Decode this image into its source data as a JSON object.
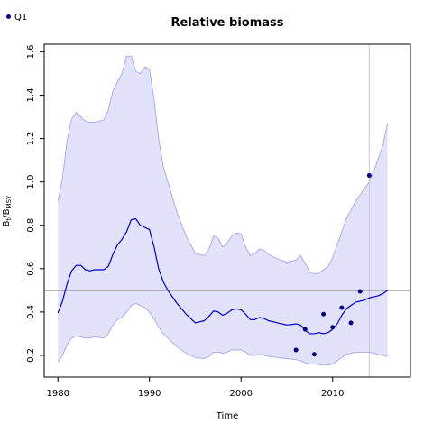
{
  "chart_data": {
    "type": "line",
    "title": "Relative biomass",
    "xlabel": "Time",
    "ylabel_main": "B",
    "ylabel_sub1": "t",
    "ylabel_sep": "/B",
    "ylabel_sub2": "MSY",
    "xlim": [
      1978.5,
      2018.5
    ],
    "ylim": [
      0.1,
      1.635
    ],
    "x_ticks": [
      1980,
      1990,
      2000,
      2010
    ],
    "y_ticks": [
      0.2,
      0.4,
      0.6,
      0.8,
      1.0,
      1.2,
      1.4,
      1.6
    ],
    "x_tick_labels": [
      "1980",
      "1990",
      "2000",
      "2010"
    ],
    "y_tick_labels": [
      "0.2",
      "0.4",
      "0.6",
      "0.8",
      "1.0",
      "1.2",
      "1.4",
      "1.6"
    ],
    "grid": false,
    "reference_line": 0.5,
    "reference_year": 2014,
    "colors": {
      "median": "#0000dd",
      "band_fill": "#e2e2fb",
      "band_edge": "#9c9cf2",
      "points": "#00008b",
      "reference": "#7a7a7a",
      "vline": "#c8c8d8"
    },
    "median": {
      "x": [
        1980,
        1980.5,
        1981,
        1981.5,
        1982,
        1982.5,
        1983,
        1983.5,
        1984,
        1985,
        1985.5,
        1986,
        1986.5,
        1987,
        1987.5,
        1988,
        1988.5,
        1989,
        1989.5,
        1990,
        1990.5,
        1991,
        1991.5,
        1992,
        1993,
        1994,
        1995,
        1996,
        1996.5,
        1997,
        1997.5,
        1998,
        1998.5,
        1999,
        1999.5,
        2000,
        2000.5,
        2001,
        2001.5,
        2002,
        2002.5,
        2003,
        2004,
        2005,
        2006,
        2006.5,
        2007,
        2007.5,
        2008,
        2008.5,
        2009,
        2009.5,
        2010,
        2010.5,
        2011,
        2011.5,
        2012,
        2012.5,
        2013,
        2013.5,
        2014,
        2014.5,
        2015,
        2015.5,
        2016
      ],
      "y": [
        0.395,
        0.45,
        0.53,
        0.59,
        0.615,
        0.615,
        0.595,
        0.59,
        0.595,
        0.595,
        0.61,
        0.665,
        0.71,
        0.735,
        0.77,
        0.825,
        0.83,
        0.8,
        0.79,
        0.78,
        0.7,
        0.6,
        0.54,
        0.5,
        0.44,
        0.39,
        0.35,
        0.36,
        0.38,
        0.405,
        0.4,
        0.385,
        0.395,
        0.41,
        0.415,
        0.41,
        0.39,
        0.365,
        0.365,
        0.375,
        0.37,
        0.36,
        0.35,
        0.34,
        0.345,
        0.34,
        0.315,
        0.3,
        0.3,
        0.305,
        0.3,
        0.305,
        0.32,
        0.345,
        0.385,
        0.415,
        0.43,
        0.445,
        0.45,
        0.455,
        0.465,
        0.47,
        0.475,
        0.485,
        0.5
      ]
    },
    "upper": {
      "x": [
        1980,
        1980.5,
        1981,
        1981.5,
        1982,
        1982.5,
        1983,
        1983.5,
        1984,
        1985,
        1985.5,
        1986,
        1986.5,
        1987,
        1987.5,
        1988,
        1988.5,
        1989,
        1989.5,
        1990,
        1990.5,
        1991,
        1991.5,
        1992,
        1993,
        1994,
        1995,
        1996,
        1996.5,
        1997,
        1997.5,
        1998,
        1998.5,
        1999,
        1999.5,
        2000,
        2000.5,
        2001,
        2001.5,
        2002,
        2002.5,
        2003,
        2004,
        2005,
        2006,
        2006.5,
        2007,
        2007.5,
        2008,
        2008.5,
        2009,
        2009.5,
        2010,
        2010.5,
        2011,
        2011.5,
        2012,
        2012.5,
        2013,
        2013.5,
        2014,
        2014.5,
        2015,
        2015.5,
        2016
      ],
      "y": [
        0.91,
        1.02,
        1.19,
        1.29,
        1.32,
        1.3,
        1.28,
        1.275,
        1.275,
        1.285,
        1.33,
        1.42,
        1.46,
        1.5,
        1.58,
        1.58,
        1.51,
        1.5,
        1.53,
        1.52,
        1.38,
        1.2,
        1.07,
        1.0,
        0.86,
        0.75,
        0.67,
        0.66,
        0.69,
        0.75,
        0.74,
        0.7,
        0.72,
        0.75,
        0.765,
        0.76,
        0.7,
        0.66,
        0.67,
        0.69,
        0.685,
        0.665,
        0.645,
        0.63,
        0.64,
        0.66,
        0.625,
        0.585,
        0.575,
        0.58,
        0.595,
        0.61,
        0.65,
        0.71,
        0.77,
        0.83,
        0.87,
        0.91,
        0.94,
        0.97,
        1.0,
        1.05,
        1.11,
        1.17,
        1.27
      ]
    },
    "lower": {
      "x": [
        1980,
        1980.5,
        1981,
        1981.5,
        1982,
        1982.5,
        1983,
        1983.5,
        1984,
        1985,
        1985.5,
        1986,
        1986.5,
        1987,
        1987.5,
        1988,
        1988.5,
        1989,
        1989.5,
        1990,
        1990.5,
        1991,
        1991.5,
        1992,
        1993,
        1994,
        1995,
        1996,
        1996.5,
        1997,
        1997.5,
        1998,
        1998.5,
        1999,
        1999.5,
        2000,
        2000.5,
        2001,
        2001.5,
        2002,
        2002.5,
        2003,
        2004,
        2005,
        2006,
        2006.5,
        2007,
        2007.5,
        2008,
        2008.5,
        2009,
        2009.5,
        2010,
        2010.5,
        2011,
        2011.5,
        2012,
        2012.5,
        2013,
        2013.5,
        2014,
        2014.5,
        2015,
        2015.5,
        2016
      ],
      "y": [
        0.17,
        0.2,
        0.25,
        0.28,
        0.29,
        0.285,
        0.28,
        0.28,
        0.285,
        0.28,
        0.3,
        0.34,
        0.365,
        0.375,
        0.4,
        0.43,
        0.44,
        0.43,
        0.42,
        0.4,
        0.37,
        0.33,
        0.3,
        0.28,
        0.24,
        0.21,
        0.19,
        0.185,
        0.195,
        0.215,
        0.215,
        0.21,
        0.215,
        0.225,
        0.225,
        0.225,
        0.215,
        0.2,
        0.2,
        0.205,
        0.2,
        0.195,
        0.19,
        0.185,
        0.18,
        0.175,
        0.165,
        0.16,
        0.16,
        0.158,
        0.155,
        0.155,
        0.16,
        0.175,
        0.19,
        0.205,
        0.21,
        0.215,
        0.215,
        0.215,
        0.215,
        0.21,
        0.205,
        0.2,
        0.195
      ]
    },
    "series": [
      {
        "name": "Q1",
        "x": [
          2006,
          2007,
          2008,
          2009,
          2010,
          2011,
          2012,
          2013,
          2014
        ],
        "y": [
          0.225,
          0.32,
          0.205,
          0.39,
          0.33,
          0.42,
          0.35,
          0.495,
          1.03
        ]
      }
    ],
    "legend": {
      "position": "top-left",
      "entries": [
        "Q1"
      ]
    }
  }
}
